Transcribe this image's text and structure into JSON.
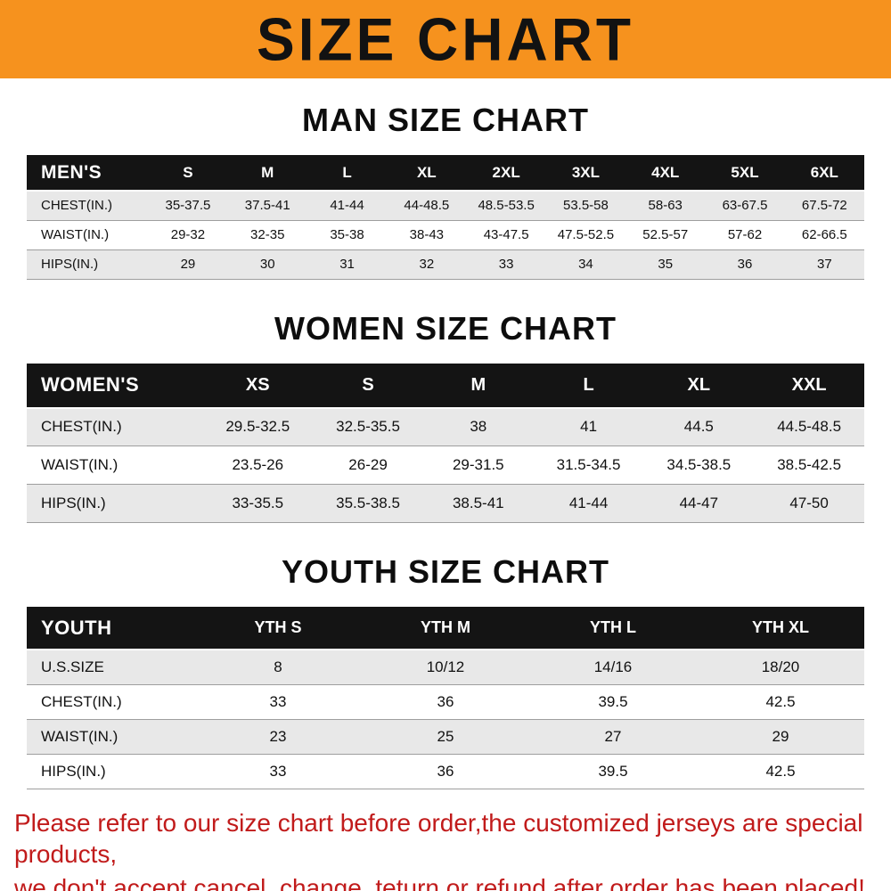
{
  "banner": {
    "title": "SIZE CHART",
    "bg_color": "#F6921E",
    "text_color": "#121212"
  },
  "chart_data": [
    {
      "type": "table",
      "title": "MAN SIZE CHART",
      "header_label": "MEN'S",
      "columns": [
        "S",
        "M",
        "L",
        "XL",
        "2XL",
        "3XL",
        "4XL",
        "5XL",
        "6XL"
      ],
      "rows": [
        {
          "label": "CHEST(IN.)",
          "values": [
            "35-37.5",
            "37.5-41",
            "41-44",
            "44-48.5",
            "48.5-53.5",
            "53.5-58",
            "58-63",
            "63-67.5",
            "67.5-72"
          ]
        },
        {
          "label": "WAIST(IN.)",
          "values": [
            "29-32",
            "32-35",
            "35-38",
            "38-43",
            "43-47.5",
            "47.5-52.5",
            "52.5-57",
            "57-62",
            "62-66.5"
          ]
        },
        {
          "label": "HIPS(IN.)",
          "values": [
            "29",
            "30",
            "31",
            "32",
            "33",
            "34",
            "35",
            "36",
            "37"
          ]
        }
      ]
    },
    {
      "type": "table",
      "title": "WOMEN SIZE CHART",
      "header_label": "WOMEN'S",
      "columns": [
        "XS",
        "S",
        "M",
        "L",
        "XL",
        "XXL"
      ],
      "rows": [
        {
          "label": "CHEST(IN.)",
          "values": [
            "29.5-32.5",
            "32.5-35.5",
            "38",
            "41",
            "44.5",
            "44.5-48.5"
          ]
        },
        {
          "label": "WAIST(IN.)",
          "values": [
            "23.5-26",
            "26-29",
            "29-31.5",
            "31.5-34.5",
            "34.5-38.5",
            "38.5-42.5"
          ]
        },
        {
          "label": "HIPS(IN.)",
          "values": [
            "33-35.5",
            "35.5-38.5",
            "38.5-41",
            "41-44",
            "44-47",
            "47-50"
          ]
        }
      ]
    },
    {
      "type": "table",
      "title": "YOUTH SIZE CHART",
      "header_label": "YOUTH",
      "columns": [
        "YTH S",
        "YTH M",
        "YTH L",
        "YTH XL"
      ],
      "rows": [
        {
          "label": "U.S.SIZE",
          "values": [
            "8",
            "10/12",
            "14/16",
            "18/20"
          ]
        },
        {
          "label": "CHEST(IN.)",
          "values": [
            "33",
            "36",
            "39.5",
            "42.5"
          ]
        },
        {
          "label": "WAIST(IN.)",
          "values": [
            "23",
            "25",
            "27",
            "29"
          ]
        },
        {
          "label": "HIPS(IN.)",
          "values": [
            "33",
            "36",
            "39.5",
            "42.5"
          ]
        }
      ]
    }
  ],
  "footer": {
    "line1": "Please refer to our size chart before order,the customized jerseys are special products,",
    "line2": "we don't accept cancel, change, teturn or refund after order has been placed!",
    "text_color": "#C11B1B"
  }
}
